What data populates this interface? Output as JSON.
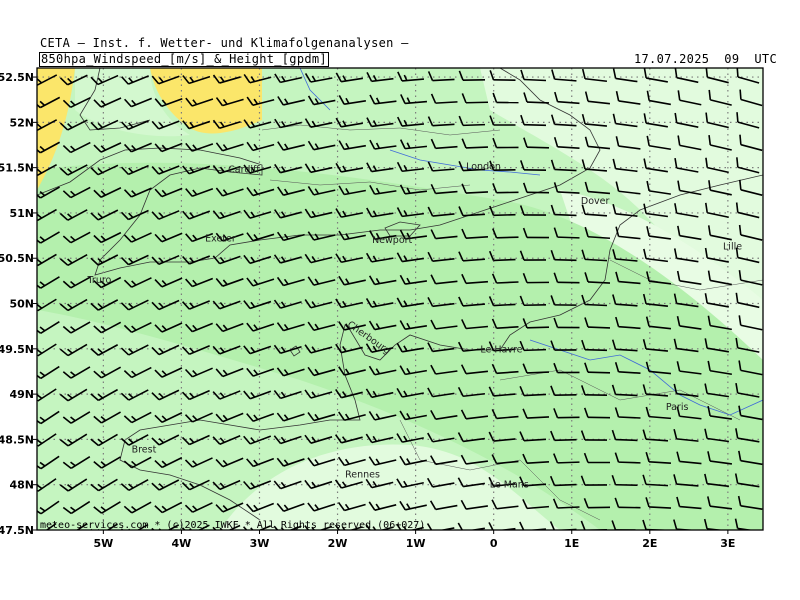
{
  "header": {
    "source": "CETA – Inst. f. Wetter- und Klimafolgenanalysen –",
    "product": "850hpa_Windspeed_[m/s]_&_Height_[gpdm]",
    "valid_time": "17.07.2025  09  UTC"
  },
  "footer": {
    "credit": "meteo-services.com * (c)2025 IWKF * All Rights reserved (06+027)"
  },
  "axes": {
    "lat_labels": [
      "52.5N",
      "52N",
      "51.5N",
      "51N",
      "50.5N",
      "50N",
      "49.5N",
      "49N",
      "48.5N",
      "48N",
      "47.5N"
    ],
    "lat_values": [
      52.5,
      52,
      51.5,
      51,
      50.5,
      50,
      49.5,
      49,
      48.5,
      48,
      47.5
    ],
    "lon_labels": [
      "5W",
      "4W",
      "3W",
      "2W",
      "1W",
      "0",
      "1E",
      "2E",
      "3E"
    ],
    "lon_values": [
      -5,
      -4,
      -3,
      -2,
      -1,
      0,
      1,
      2,
      3
    ],
    "lat_range": [
      47.5,
      52.6
    ],
    "lon_range": [
      -5.85,
      3.45
    ]
  },
  "cities": [
    {
      "name": "Cardiff",
      "lon": -3.2,
      "lat": 51.48
    },
    {
      "name": "London",
      "lon": -0.13,
      "lat": 51.51
    },
    {
      "name": "Dover",
      "lon": 1.3,
      "lat": 51.13
    },
    {
      "name": "Exeter",
      "lon": -3.5,
      "lat": 50.72
    },
    {
      "name": "Newport",
      "lon": -1.3,
      "lat": 50.7
    },
    {
      "name": "Truro",
      "lon": -5.05,
      "lat": 50.26
    },
    {
      "name": "Lille",
      "lon": 3.06,
      "lat": 50.63
    },
    {
      "name": "Cherbourg",
      "lon": -1.62,
      "lat": 49.63
    },
    {
      "name": "Le Havre",
      "lon": 0.1,
      "lat": 49.49
    },
    {
      "name": "Paris",
      "lon": 2.35,
      "lat": 48.86
    },
    {
      "name": "Brest",
      "lon": -4.48,
      "lat": 48.39
    },
    {
      "name": "Rennes",
      "lon": -1.68,
      "lat": 48.11
    },
    {
      "name": "Le Mans",
      "lon": 0.2,
      "lat": 48.0
    }
  ],
  "colors": {
    "sea_land_base": "#c5f5c0",
    "light_band": "#e2fbde",
    "mid_band": "#b4f0ad",
    "high_wind": "#fbe66a",
    "grid": "#7c7c7c",
    "coast": "#333333",
    "rivers": "#3f6ad8",
    "barb": "#000000"
  },
  "legend": {
    "barb_type": "wind barbs (speed/direction)",
    "shading": "windspeed [m/s]"
  }
}
